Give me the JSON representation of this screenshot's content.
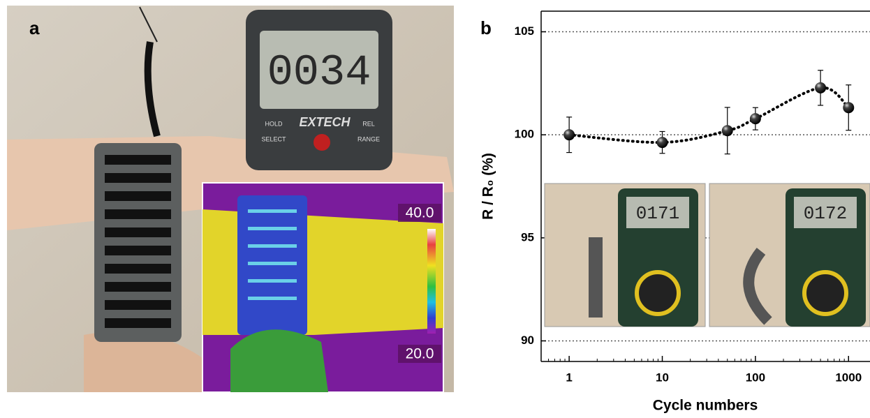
{
  "panel_a": {
    "label": "a",
    "meter_display": "0034",
    "meter_brand": "EXTECH",
    "buttons": [
      "HOLD",
      "SELECT",
      "REL",
      "RANGE"
    ],
    "thermal_max": "40.0",
    "thermal_min": "20.0"
  },
  "chart_data": {
    "type": "scatter",
    "panel_label": "b",
    "x_label": "Cycle numbers",
    "y_label": "R / R₀ (%)",
    "x": [
      1,
      10,
      50,
      100,
      500,
      1000
    ],
    "series": [
      {
        "values": [
          100.0,
          99.63,
          100.2,
          100.78,
          102.28,
          101.32
        ],
        "errors": [
          0.86,
          0.53,
          1.13,
          0.54,
          0.85,
          1.1
        ],
        "color": "#000000"
      }
    ],
    "xlim": [
      0.5,
      1700
    ],
    "ylim": [
      89,
      106
    ],
    "xticks": [
      1,
      10,
      100,
      1000
    ],
    "yticks": [
      90,
      95,
      100,
      105
    ],
    "log_x": true,
    "grid": true,
    "trend_line": "dotted",
    "inset_displays": [
      "0171",
      "0172"
    ]
  }
}
